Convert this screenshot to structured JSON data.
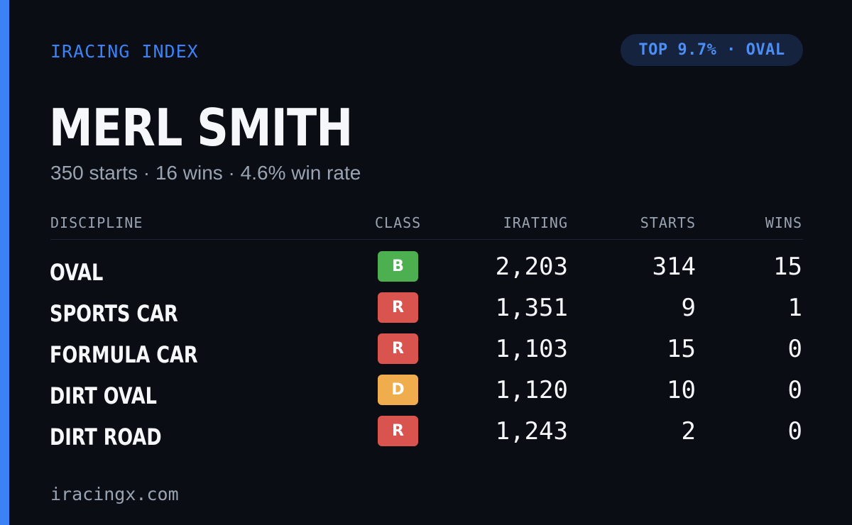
{
  "header": {
    "brand": "IRACING INDEX",
    "badge": "TOP 9.7% · OVAL"
  },
  "driver": {
    "name": "MERL SMITH",
    "summary": "350 starts · 16 wins · 4.6% win rate"
  },
  "table": {
    "columns": {
      "discipline": "DISCIPLINE",
      "class": "CLASS",
      "irating": "IRATING",
      "starts": "STARTS",
      "wins": "WINS"
    },
    "rows": [
      {
        "discipline": "OVAL",
        "class": "B",
        "class_color": "#4caf50",
        "irating": "2,203",
        "starts": "314",
        "wins": "15"
      },
      {
        "discipline": "SPORTS CAR",
        "class": "R",
        "class_color": "#d9534f",
        "irating": "1,351",
        "starts": "9",
        "wins": "1"
      },
      {
        "discipline": "FORMULA CAR",
        "class": "R",
        "class_color": "#d9534f",
        "irating": "1,103",
        "starts": "15",
        "wins": "0"
      },
      {
        "discipline": "DIRT OVAL",
        "class": "D",
        "class_color": "#f0ad4e",
        "irating": "1,120",
        "starts": "10",
        "wins": "0"
      },
      {
        "discipline": "DIRT ROAD",
        "class": "R",
        "class_color": "#d9534f",
        "irating": "1,243",
        "starts": "2",
        "wins": "0"
      }
    ]
  },
  "footer": {
    "site": "iracingx.com"
  },
  "colors": {
    "accent": "#3b82f6",
    "background": "#0a0d14",
    "badge_bg": "#15233f",
    "muted_text": "#9aa3b2"
  }
}
